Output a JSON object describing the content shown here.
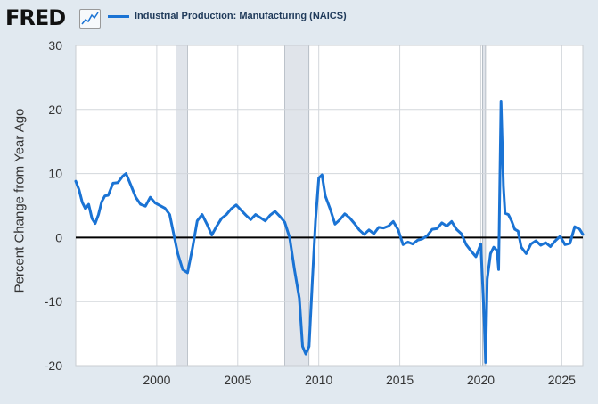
{
  "brand": {
    "name": "FRED",
    "icon": "chart-line-icon"
  },
  "colors": {
    "series": "#1a73d4",
    "recession": "#e0e4ea",
    "background": "#e1e9f0",
    "zero_line": "#000000"
  },
  "chart_data": {
    "type": "line",
    "title": "",
    "xlabel": "",
    "ylabel": "Percent Change from Year Ago",
    "xlim": [
      1995.0,
      2026.3
    ],
    "ylim": [
      -20,
      30
    ],
    "x_ticks": [
      "2000",
      "2005",
      "2010",
      "2015",
      "2020",
      "2025"
    ],
    "y_ticks": [
      "-20",
      "-10",
      "0",
      "10",
      "20",
      "30"
    ],
    "grid": true,
    "legend": "top-left",
    "recessions": [
      [
        2001.2,
        2001.9
      ],
      [
        2007.9,
        2009.4
      ],
      [
        2020.1,
        2020.3
      ]
    ],
    "series": [
      {
        "name": "Industrial Production: Manufacturing (NAICS)",
        "x": [
          1995.0,
          1995.2,
          1995.4,
          1995.6,
          1995.8,
          1996.0,
          1996.2,
          1996.4,
          1996.6,
          1996.8,
          1997.0,
          1997.3,
          1997.6,
          1997.9,
          1998.1,
          1998.4,
          1998.7,
          1999.0,
          1999.3,
          1999.6,
          1999.9,
          2000.2,
          2000.5,
          2000.8,
          2001.0,
          2001.3,
          2001.6,
          2001.9,
          2002.2,
          2002.5,
          2002.8,
          2003.1,
          2003.4,
          2003.7,
          2004.0,
          2004.3,
          2004.6,
          2004.9,
          2005.2,
          2005.5,
          2005.8,
          2006.1,
          2006.4,
          2006.7,
          2007.0,
          2007.3,
          2007.6,
          2007.9,
          2008.2,
          2008.5,
          2008.8,
          2009.0,
          2009.2,
          2009.4,
          2009.6,
          2009.8,
          2010.0,
          2010.2,
          2010.4,
          2010.7,
          2011.0,
          2011.3,
          2011.6,
          2011.9,
          2012.2,
          2012.5,
          2012.8,
          2013.1,
          2013.4,
          2013.7,
          2014.0,
          2014.3,
          2014.6,
          2014.9,
          2015.2,
          2015.5,
          2015.8,
          2016.1,
          2016.4,
          2016.7,
          2017.0,
          2017.3,
          2017.6,
          2017.9,
          2018.2,
          2018.5,
          2018.8,
          2019.1,
          2019.4,
          2019.7,
          2020.0,
          2020.2,
          2020.3,
          2020.4,
          2020.6,
          2020.8,
          2021.0,
          2021.1,
          2021.25,
          2021.4,
          2021.5,
          2021.7,
          2021.9,
          2022.1,
          2022.3,
          2022.5,
          2022.8,
          2023.1,
          2023.4,
          2023.7,
          2024.0,
          2024.3,
          2024.6,
          2024.9,
          2025.2,
          2025.5,
          2025.8,
          2026.1,
          2026.3
        ],
        "y": [
          8.8,
          7.5,
          5.5,
          4.5,
          5.2,
          3.0,
          2.2,
          3.6,
          5.6,
          6.5,
          6.6,
          8.5,
          8.6,
          9.6,
          10.0,
          8.2,
          6.3,
          5.2,
          4.9,
          6.3,
          5.4,
          5.0,
          4.6,
          3.6,
          1.1,
          -2.5,
          -5.0,
          -5.5,
          -1.7,
          2.6,
          3.6,
          2.1,
          0.4,
          1.8,
          3.0,
          3.6,
          4.5,
          5.1,
          4.3,
          3.5,
          2.8,
          3.6,
          3.1,
          2.6,
          3.5,
          4.1,
          3.3,
          2.4,
          0.0,
          -5.0,
          -9.5,
          -17.0,
          -18.2,
          -17.0,
          -7.0,
          2.5,
          9.3,
          9.8,
          6.5,
          4.5,
          2.1,
          2.8,
          3.7,
          3.1,
          2.2,
          1.2,
          0.5,
          1.2,
          0.6,
          1.6,
          1.5,
          1.8,
          2.5,
          1.2,
          -1.1,
          -0.7,
          -1.0,
          -0.4,
          -0.2,
          0.3,
          1.3,
          1.4,
          2.3,
          1.8,
          2.5,
          1.3,
          0.6,
          -1.1,
          -2.1,
          -3.0,
          -1.0,
          -12.0,
          -19.5,
          -6.5,
          -2.5,
          -1.5,
          -2.0,
          -5.0,
          21.3,
          8.0,
          3.8,
          3.6,
          2.6,
          1.3,
          1.0,
          -1.5,
          -2.5,
          -1.0,
          -0.5,
          -1.2,
          -0.8,
          -1.4,
          -0.5,
          0.2,
          -1.1,
          -0.9,
          1.7,
          1.3,
          0.5
        ]
      }
    ]
  }
}
